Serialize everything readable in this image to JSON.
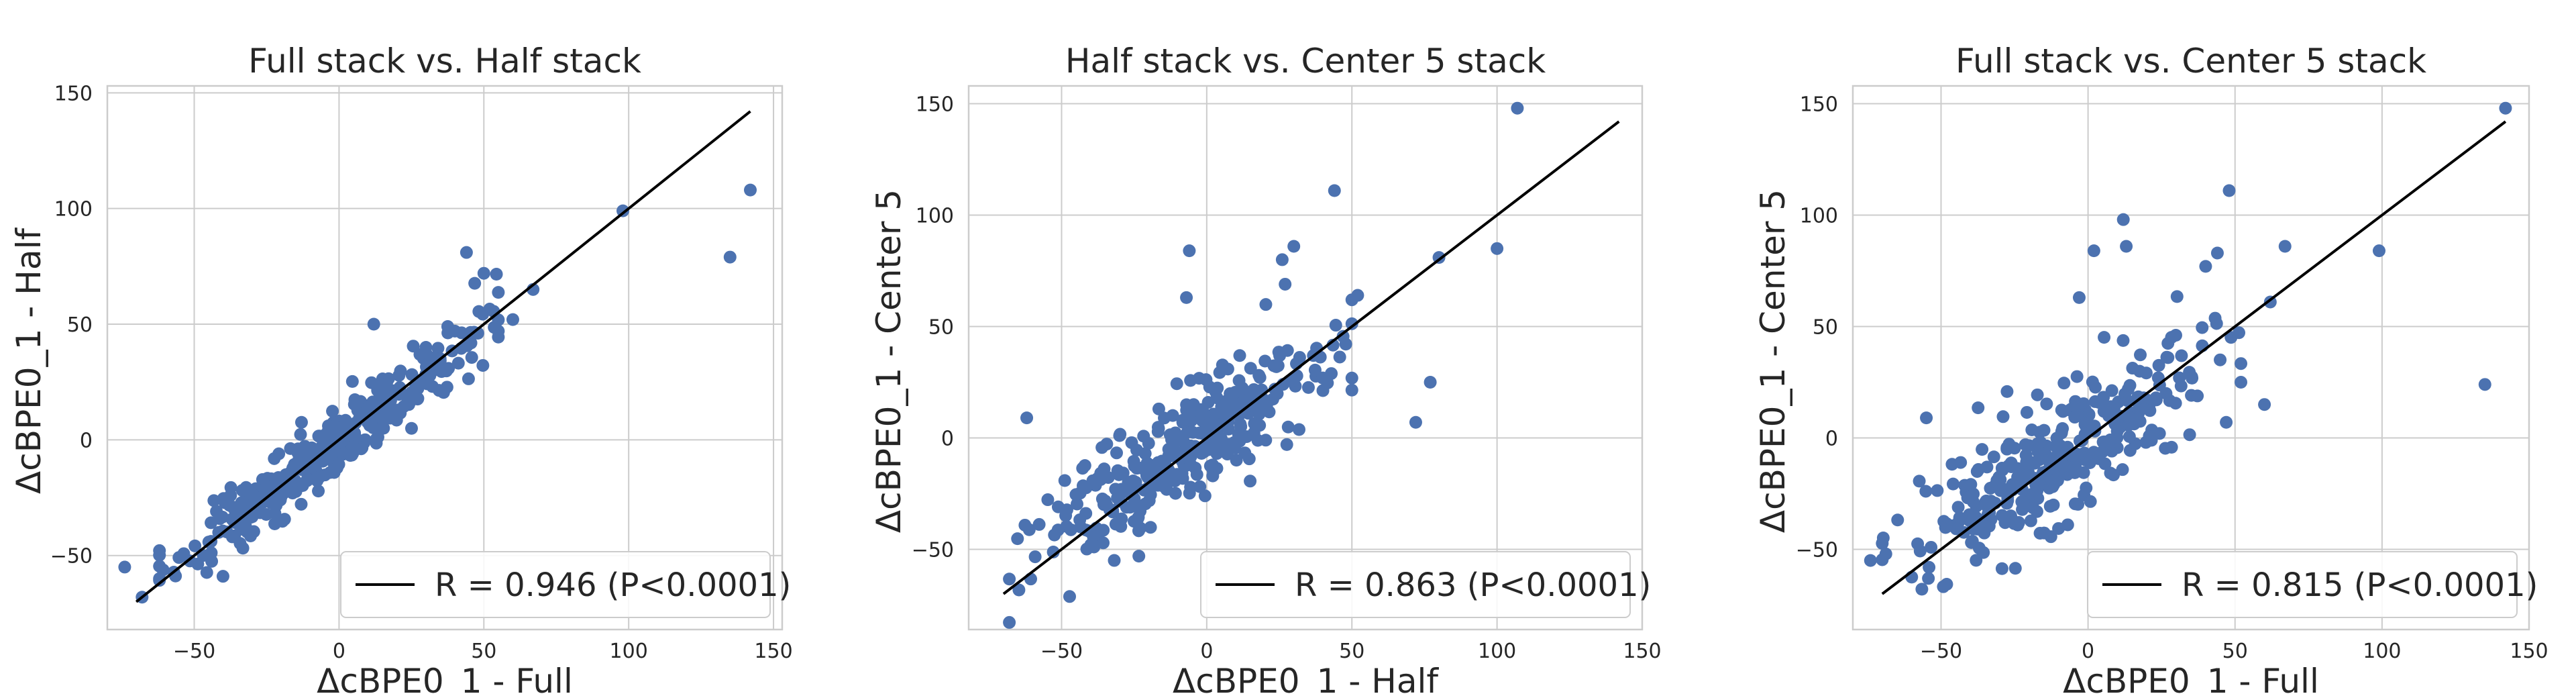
{
  "figure": {
    "point_color": "#4c72b0",
    "fit_line_color": "#000000",
    "grid_color": "#cccccc",
    "frame_color": "#cccccc"
  },
  "chart_data": [
    {
      "type": "scatter",
      "title": "Full stack vs. Half stack",
      "xlabel": "ΔcBPE0_1 - Full",
      "ylabel": "ΔcBPE0_1 - Half",
      "xlim": [
        -80,
        153
      ],
      "ylim": [
        -82,
        153
      ],
      "xticks": [
        -50,
        0,
        50,
        100,
        150
      ],
      "yticks": [
        -50,
        0,
        50,
        100,
        150
      ],
      "xtick_labels": [
        "−50",
        "0",
        "50",
        "100",
        "150"
      ],
      "ytick_labels": [
        "−50",
        "0",
        "50",
        "100",
        "150"
      ],
      "grid": true,
      "fit_line": {
        "x": [
          -70,
          142
        ],
        "y": [
          -70,
          142
        ]
      },
      "legend": {
        "label": "R = 0.946 (P<0.0001)",
        "loc": "lower right"
      },
      "outliers": {
        "x": [
          142,
          135,
          98,
          67,
          60,
          55,
          50,
          44,
          40,
          30,
          12,
          -68,
          -74
        ],
        "y": [
          108,
          79,
          99,
          65,
          52,
          47,
          72,
          81,
          47,
          40,
          50,
          -68,
          -55
        ]
      },
      "cloud": {
        "n": 360,
        "x_mean": -5,
        "x_sd": 25,
        "slope": 0.95,
        "intercept": -1,
        "resid_sd": 7,
        "x_min": -62,
        "x_max": 55,
        "seed": 11
      }
    },
    {
      "type": "scatter",
      "title": "Half stack vs. Center 5 stack",
      "xlabel": "ΔcBPE0_1 - Half",
      "ylabel": "ΔcBPE0_1 - Center 5",
      "xlim": [
        -82,
        150
      ],
      "ylim": [
        -86,
        158
      ],
      "xticks": [
        -50,
        0,
        50,
        100,
        150
      ],
      "yticks": [
        -50,
        0,
        50,
        100,
        150
      ],
      "xtick_labels": [
        "−50",
        "0",
        "50",
        "100",
        "150"
      ],
      "ytick_labels": [
        "−50",
        "0",
        "50",
        "100",
        "150"
      ],
      "grid": true,
      "fit_line": {
        "x": [
          -70,
          142
        ],
        "y": [
          -70,
          142
        ]
      },
      "legend": {
        "label": "R = 0.863 (P<0.0001)",
        "loc": "lower right"
      },
      "outliers": {
        "x": [
          107,
          100,
          80,
          77,
          72,
          52,
          50,
          44,
          30,
          -6,
          -7,
          26,
          27,
          13,
          -62
        ],
        "y": [
          148,
          85,
          81,
          25,
          7,
          64,
          62,
          111,
          86,
          84,
          63,
          80,
          69,
          15,
          9
        ]
      },
      "cloud": {
        "n": 330,
        "x_mean": -10,
        "x_sd": 24,
        "slope": 0.85,
        "intercept": 0,
        "resid_sd": 13,
        "x_min": -68,
        "x_max": 50,
        "seed": 23
      }
    },
    {
      "type": "scatter",
      "title": "Full stack vs. Center 5 stack",
      "xlabel": "ΔcBPE0_1 - Full",
      "ylabel": "ΔcBPE0_1 - Center 5",
      "xlim": [
        -80,
        150
      ],
      "ylim": [
        -86,
        158
      ],
      "xticks": [
        -50,
        0,
        50,
        100,
        150
      ],
      "yticks": [
        -50,
        0,
        50,
        100,
        150
      ],
      "xtick_labels": [
        "−50",
        "0",
        "50",
        "100",
        "150"
      ],
      "ytick_labels": [
        "−50",
        "0",
        "50",
        "100",
        "150"
      ],
      "grid": true,
      "fit_line": {
        "x": [
          -70,
          142
        ],
        "y": [
          -70,
          142
        ]
      },
      "legend": {
        "label": "R = 0.815 (P<0.0001)",
        "loc": "lower right"
      },
      "outliers": {
        "x": [
          142,
          135,
          99,
          67,
          62,
          60,
          48,
          47,
          44,
          40,
          13,
          12,
          2,
          -3,
          -55,
          -74
        ],
        "y": [
          148,
          24,
          84,
          86,
          61,
          15,
          111,
          7,
          83,
          77,
          86,
          98,
          84,
          63,
          9,
          -55
        ]
      },
      "cloud": {
        "n": 330,
        "x_mean": -8,
        "x_sd": 25,
        "slope": 0.8,
        "intercept": 0,
        "resid_sd": 14,
        "x_min": -70,
        "x_max": 52,
        "seed": 37
      }
    }
  ]
}
